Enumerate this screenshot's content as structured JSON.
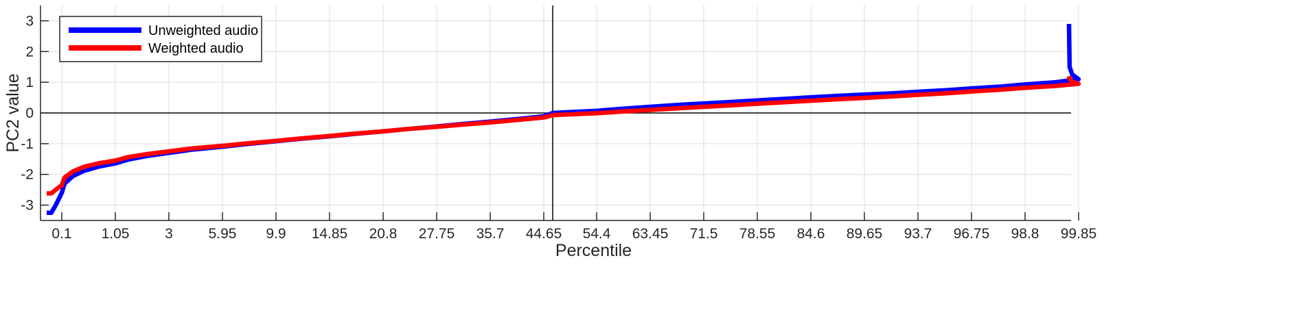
{
  "chart_data": {
    "type": "line",
    "xlabel": "Percentile",
    "ylabel": "PC2 value",
    "ylim": [
      -3.5,
      3.5
    ],
    "yticks": [
      -3,
      -2,
      -1,
      0,
      1,
      2,
      3
    ],
    "ytick_labels": [
      "-3",
      "-2",
      "-1",
      "0",
      "1",
      "2",
      "3"
    ],
    "xtick_labels": [
      "0.1",
      "1.05",
      "3",
      "5.95",
      "9.9",
      "14.85",
      "20.8",
      "27.75",
      "35.7",
      "44.65",
      "54.4",
      "63.45",
      "71.5",
      "78.55",
      "84.6",
      "89.65",
      "93.7",
      "96.75",
      "98.8",
      "99.85"
    ],
    "grid": true,
    "legend_position": "top-left",
    "reference_lines": {
      "vertical_at": "50",
      "horizontal_at": 0
    },
    "x": [
      0,
      0.03,
      0.06,
      0.1,
      0.15,
      0.3,
      0.5,
      0.75,
      1.05,
      1.5,
      2.2,
      3,
      4.2,
      5.95,
      7.8,
      9.9,
      12.2,
      14.85,
      17.7,
      20.8,
      24.1,
      27.75,
      31.6,
      35.7,
      40.1,
      44.65,
      50,
      54.4,
      58.9,
      63.45,
      67.6,
      71.5,
      75.2,
      78.55,
      81.7,
      84.6,
      87.3,
      89.65,
      91.8,
      93.7,
      95.3,
      96.75,
      97.9,
      98.8,
      99.4,
      99.85,
      99.95,
      99.99,
      100
    ],
    "series": [
      {
        "name": "Unweighted audio",
        "color": "#0000ff",
        "values": [
          -3.25,
          -3.25,
          -3.0,
          -2.6,
          -2.3,
          -2.05,
          -1.88,
          -1.75,
          -1.64,
          -1.52,
          -1.4,
          -1.3,
          -1.2,
          -1.1,
          -1.01,
          -0.92,
          -0.84,
          -0.76,
          -0.68,
          -0.6,
          -0.52,
          -0.44,
          -0.36,
          -0.28,
          -0.2,
          -0.11,
          0.0,
          0.07,
          0.14,
          0.2,
          0.26,
          0.31,
          0.36,
          0.41,
          0.46,
          0.51,
          0.56,
          0.6,
          0.64,
          0.69,
          0.74,
          0.8,
          0.86,
          0.93,
          1.0,
          1.1,
          1.25,
          1.5,
          2.9
        ]
      },
      {
        "name": "Weighted audio",
        "color": "#ff0000",
        "values": [
          -2.62,
          -2.62,
          -2.5,
          -2.35,
          -2.1,
          -1.9,
          -1.75,
          -1.64,
          -1.55,
          -1.44,
          -1.34,
          -1.25,
          -1.16,
          -1.07,
          -0.99,
          -0.91,
          -0.83,
          -0.75,
          -0.67,
          -0.6,
          -0.52,
          -0.45,
          -0.38,
          -0.31,
          -0.23,
          -0.15,
          -0.07,
          -0.01,
          0.05,
          0.1,
          0.15,
          0.2,
          0.25,
          0.3,
          0.35,
          0.4,
          0.45,
          0.49,
          0.54,
          0.59,
          0.64,
          0.7,
          0.76,
          0.82,
          0.88,
          0.95,
          1.02,
          1.1,
          1.2
        ]
      }
    ]
  }
}
